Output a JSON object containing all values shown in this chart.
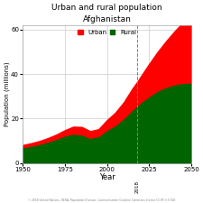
{
  "title": "Urban and rural population",
  "subtitle": "Afghanistan",
  "xlabel": "Year",
  "ylabel": "Population (millions)",
  "legend_labels": [
    "Urban",
    "Rural"
  ],
  "legend_colors": [
    "#ff0000",
    "#006400"
  ],
  "urban_color": "#ff0000",
  "rural_color": "#006400",
  "dashed_line_year": 2018,
  "footnote": "© 2018 United Nations, DESA, Population Division. Licensed under Creative Commons license CC BY 3.0 IGO",
  "years": [
    1950,
    1955,
    1960,
    1965,
    1970,
    1975,
    1980,
    1985,
    1990,
    1995,
    2000,
    2005,
    2010,
    2015,
    2018,
    2020,
    2025,
    2030,
    2035,
    2040,
    2045,
    2050
  ],
  "urban": [
    0.97,
    1.12,
    1.32,
    1.57,
    1.89,
    2.37,
    3.15,
    3.4,
    2.96,
    3.1,
    4.38,
    5.59,
    7.17,
    9.37,
    10.53,
    11.59,
    14.41,
    17.41,
    20.52,
    23.74,
    27.17,
    30.75
  ],
  "rural": [
    7.08,
    7.76,
    8.57,
    9.64,
    10.89,
    12.38,
    13.17,
    12.78,
    11.35,
    12.1,
    14.9,
    17.1,
    20.2,
    24.0,
    26.0,
    27.3,
    30.1,
    32.5,
    34.2,
    35.4,
    36.0,
    36.2
  ],
  "ylim": [
    0,
    62
  ],
  "yticks": [
    0,
    20,
    40,
    60
  ],
  "xlim": [
    1950,
    2050
  ],
  "xticks": [
    1950,
    1975,
    2000,
    2025,
    2050
  ],
  "background_color": "#ffffff",
  "grid_color": "#cccccc"
}
